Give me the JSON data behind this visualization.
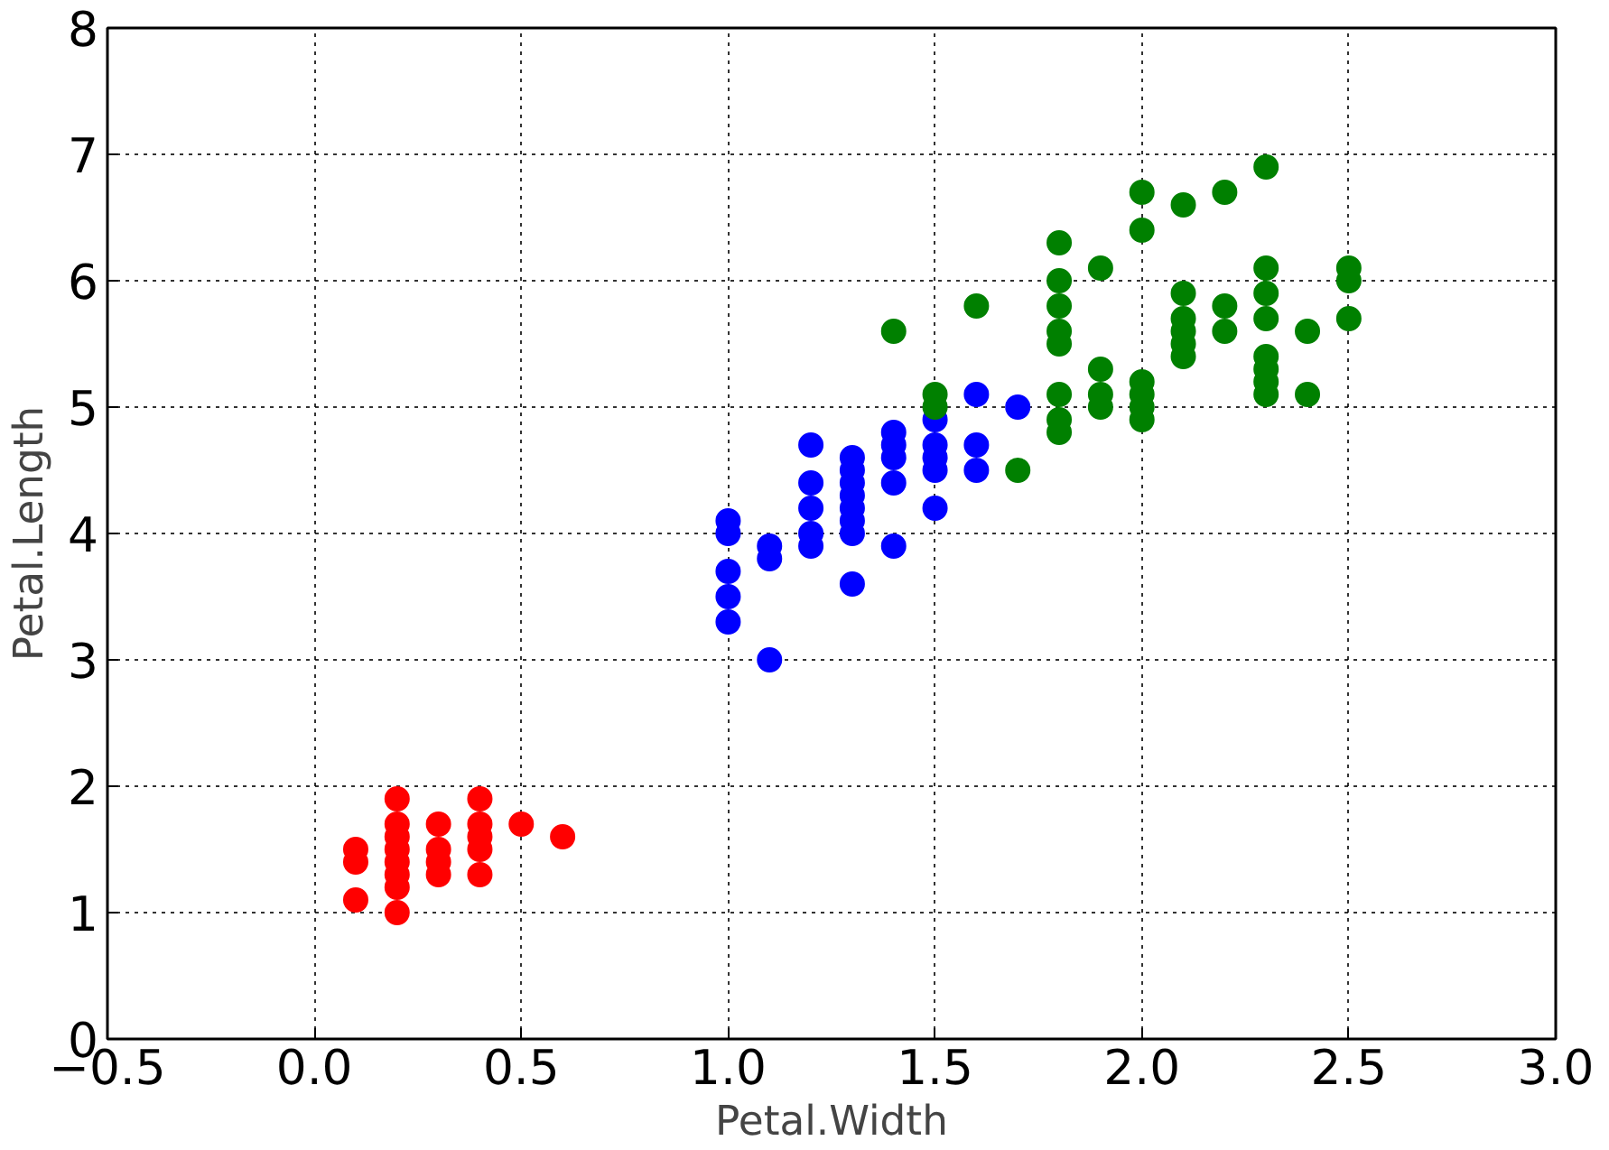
{
  "chart_data": {
    "type": "scatter",
    "xlabel": "Petal.Width",
    "ylabel": "Petal.Length",
    "xlim": [
      -0.5,
      3.0
    ],
    "ylim": [
      0,
      8
    ],
    "xticks": [
      {
        "value": -0.5,
        "label": "−0.5"
      },
      {
        "value": 0,
        "label": "0.0"
      },
      {
        "value": 0.5,
        "label": "0.5"
      },
      {
        "value": 1,
        "label": "1.0"
      },
      {
        "value": 1.5,
        "label": "1.5"
      },
      {
        "value": 2,
        "label": "2.0"
      },
      {
        "value": 2.5,
        "label": "2.5"
      },
      {
        "value": 3,
        "label": "3.0"
      }
    ],
    "yticks": [
      0,
      1,
      2,
      3,
      4,
      5,
      6,
      7,
      8
    ],
    "grid": true,
    "marker": "circle",
    "series": [
      {
        "color": "#ff0000",
        "x": [
          0.1,
          0.1,
          0.1,
          0.2,
          0.2,
          0.2,
          0.2,
          0.2,
          0.2,
          0.2,
          0.2,
          0.3,
          0.3,
          0.3,
          0.3,
          0.4,
          0.4,
          0.4,
          0.4,
          0.4,
          0.5,
          0.6
        ],
        "values": [
          1.1,
          1.4,
          1.5,
          1.0,
          1.2,
          1.3,
          1.4,
          1.5,
          1.6,
          1.7,
          1.9,
          1.3,
          1.4,
          1.5,
          1.7,
          1.3,
          1.5,
          1.6,
          1.7,
          1.9,
          1.7,
          1.6
        ]
      },
      {
        "color": "#0000ff",
        "x": [
          1.0,
          1.0,
          1.0,
          1.0,
          1.0,
          1.1,
          1.1,
          1.1,
          1.2,
          1.2,
          1.2,
          1.2,
          1.2,
          1.3,
          1.3,
          1.3,
          1.3,
          1.3,
          1.3,
          1.3,
          1.3,
          1.4,
          1.4,
          1.4,
          1.4,
          1.4,
          1.5,
          1.5,
          1.5,
          1.5,
          1.5,
          1.6,
          1.6,
          1.6,
          1.7
        ],
        "values": [
          3.3,
          3.5,
          3.7,
          4.0,
          4.1,
          3.0,
          3.8,
          3.9,
          3.9,
          4.0,
          4.2,
          4.4,
          4.7,
          3.6,
          4.0,
          4.1,
          4.2,
          4.3,
          4.4,
          4.5,
          4.6,
          3.9,
          4.4,
          4.6,
          4.7,
          4.8,
          4.2,
          4.5,
          4.6,
          4.7,
          4.9,
          4.5,
          4.7,
          5.1,
          5.0
        ]
      },
      {
        "color": "#008000",
        "x": [
          1.4,
          1.5,
          1.5,
          1.6,
          1.7,
          1.8,
          1.8,
          1.8,
          1.8,
          1.8,
          1.8,
          1.8,
          1.8,
          1.9,
          1.9,
          1.9,
          1.9,
          2.0,
          2.0,
          2.0,
          2.0,
          2.0,
          2.0,
          2.1,
          2.1,
          2.1,
          2.1,
          2.1,
          2.1,
          2.2,
          2.2,
          2.2,
          2.3,
          2.3,
          2.3,
          2.3,
          2.3,
          2.3,
          2.3,
          2.3,
          2.4,
          2.4,
          2.5,
          2.5,
          2.5
        ],
        "values": [
          5.6,
          5.0,
          5.1,
          5.8,
          4.5,
          4.8,
          4.9,
          5.1,
          5.5,
          5.6,
          5.8,
          6.0,
          6.3,
          5.0,
          5.1,
          5.3,
          6.1,
          4.9,
          5.0,
          5.1,
          5.2,
          6.4,
          6.7,
          5.4,
          5.5,
          5.6,
          5.7,
          5.9,
          6.6,
          5.6,
          5.8,
          6.7,
          5.1,
          5.2,
          5.3,
          5.4,
          5.7,
          5.9,
          6.1,
          6.9,
          5.1,
          5.6,
          5.7,
          6.0,
          6.1
        ]
      }
    ]
  }
}
